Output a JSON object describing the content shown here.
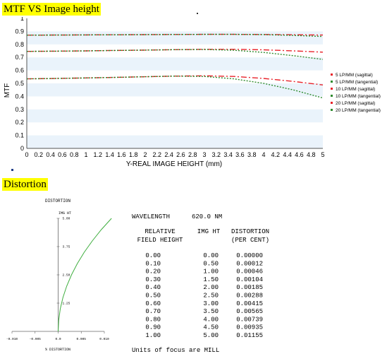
{
  "mtf_heading": "MTF VS Image height",
  "distortion_heading": "Distortion",
  "colors": {
    "heading_bg": "#ffff00",
    "band": "#eaf3fb",
    "red": "#e8232a",
    "green": "#2e8b2e",
    "dist_curve": "#3fae3f"
  },
  "chart_data": [
    {
      "type": "line",
      "title": "",
      "xlabel": "Y-REAL IMAGE HEIGHT (mm)",
      "ylabel": "MTF",
      "xlim": [
        0,
        5
      ],
      "ylim": [
        0,
        1
      ],
      "x_ticks": [
        "0",
        "0.2",
        "0.4",
        "0.6",
        "0.8",
        "1",
        "1.2",
        "1.4",
        "1.6",
        "1.8",
        "2",
        "2.2",
        "2.4",
        "2.6",
        "2.8",
        "3",
        "3.2",
        "3.4",
        "3.6",
        "3.8",
        "4",
        "4.2",
        "4.4",
        "4.6",
        "4.8",
        "5"
      ],
      "y_ticks": [
        "0",
        "0.1",
        "0.2",
        "0.3",
        "0.4",
        "0.5",
        "0.6",
        "0.7",
        "0.8",
        "0.9",
        "1"
      ],
      "legend_position": "right",
      "grid": "alternating horizontal bands",
      "x": [
        0,
        0.5,
        1,
        1.5,
        2,
        2.5,
        3,
        3.5,
        4,
        4.5,
        5
      ],
      "series": [
        {
          "name": "5 LP/MM (sagittal)",
          "color": "#e8232a",
          "dash": "8,3,2,3",
          "values": [
            0.871,
            0.872,
            0.873,
            0.874,
            0.875,
            0.876,
            0.877,
            0.877,
            0.876,
            0.874,
            0.872
          ]
        },
        {
          "name": "5 LP/MM (tangential)",
          "color": "#2e8b2e",
          "dash": "2,2",
          "values": [
            0.871,
            0.872,
            0.873,
            0.874,
            0.875,
            0.876,
            0.877,
            0.877,
            0.875,
            0.869,
            0.861
          ]
        },
        {
          "name": "10 LP/MM (sagittal)",
          "color": "#e8232a",
          "dash": "8,3,2,3",
          "values": [
            0.746,
            0.748,
            0.75,
            0.753,
            0.756,
            0.759,
            0.762,
            0.762,
            0.758,
            0.75,
            0.74
          ]
        },
        {
          "name": "10 LP/MM (tangential)",
          "color": "#2e8b2e",
          "dash": "2,2",
          "values": [
            0.746,
            0.748,
            0.75,
            0.753,
            0.756,
            0.759,
            0.761,
            0.755,
            0.738,
            0.713,
            0.685
          ]
        },
        {
          "name": "20 LP/MM (sagittal)",
          "color": "#e8232a",
          "dash": "8,3,2,3",
          "values": [
            0.535,
            0.538,
            0.542,
            0.546,
            0.551,
            0.556,
            0.558,
            0.553,
            0.538,
            0.515,
            0.488
          ]
        },
        {
          "name": "20 LP/MM (tangential)",
          "color": "#2e8b2e",
          "dash": "2,2",
          "values": [
            0.535,
            0.538,
            0.542,
            0.546,
            0.551,
            0.556,
            0.553,
            0.535,
            0.5,
            0.45,
            0.388
          ]
        }
      ]
    },
    {
      "type": "line",
      "title": "DISTORTION",
      "xlabel": "% DISTORTION",
      "ylabel": "IMG HT",
      "xlim": [
        -0.01,
        0.01
      ],
      "ylim": [
        0,
        5
      ],
      "x_ticks": [
        "-0.010",
        "-0.005",
        "0.0",
        "0.005",
        "0.010"
      ],
      "y_ticks": [
        "1.25",
        "2.50",
        "3.75",
        "5.00"
      ],
      "y_tick_values": [
        1.25,
        2.5,
        3.75,
        5
      ],
      "x": [
        0.0,
        0.00012,
        0.00046,
        0.00104,
        0.00185,
        0.00288,
        0.00415,
        0.00565,
        0.00739,
        0.00935,
        0.01155
      ],
      "y": [
        0.0,
        0.5,
        1.0,
        1.5,
        2.0,
        2.5,
        3.0,
        3.5,
        4.0,
        4.5,
        5.0
      ]
    }
  ],
  "distortion_table": {
    "wavelength_label": "WAVELENGTH",
    "wavelength_value": "620.0 NM",
    "headers": [
      [
        "RELATIVE",
        "FIELD HEIGHT"
      ],
      [
        "IMG HT",
        ""
      ],
      [
        "DISTORTION",
        "(PER CENT)"
      ]
    ],
    "rows": [
      [
        "0.00",
        "0.00",
        "0.00000"
      ],
      [
        "0.10",
        "0.50",
        "0.00012"
      ],
      [
        "0.20",
        "1.00",
        "0.00046"
      ],
      [
        "0.30",
        "1.50",
        "0.00104"
      ],
      [
        "0.40",
        "2.00",
        "0.00185"
      ],
      [
        "0.50",
        "2.50",
        "0.00288"
      ],
      [
        "0.60",
        "3.00",
        "0.00415"
      ],
      [
        "0.70",
        "3.50",
        "0.00565"
      ],
      [
        "0.80",
        "4.00",
        "0.00739"
      ],
      [
        "0.90",
        "4.50",
        "0.00935"
      ],
      [
        "1.00",
        "5.00",
        "0.01155"
      ]
    ],
    "footer": "Units of focus are MILL"
  }
}
